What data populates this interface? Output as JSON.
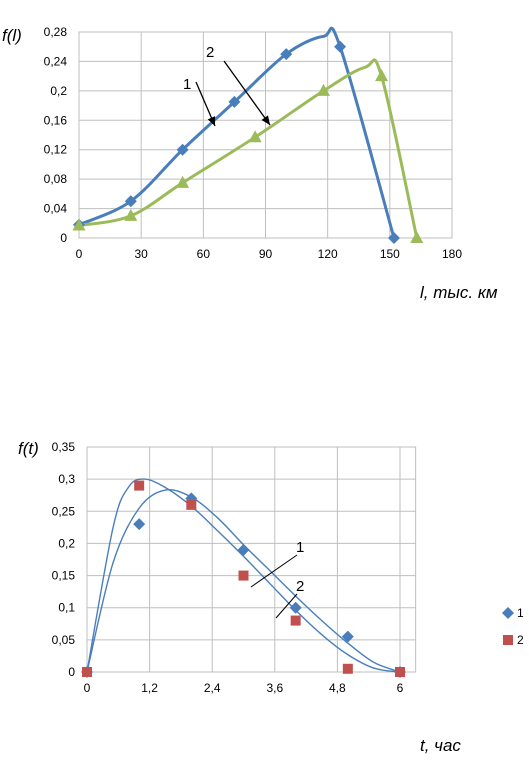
{
  "chart_data": [
    {
      "type": "line",
      "ylabel": "f(l)",
      "xlabel": "l, тыс. км",
      "xlim": [
        0,
        180
      ],
      "ylim": [
        0,
        0.28
      ],
      "x_ticks": [
        "0",
        "30",
        "60",
        "90",
        "120",
        "150",
        "180"
      ],
      "y_ticks": [
        "0",
        "0,04",
        "0,08",
        "0,12",
        "0,16",
        "0,2",
        "0,24",
        "0,28"
      ],
      "grid": true,
      "series": [
        {
          "name": "1",
          "color": "#4a7ebb",
          "marker": "diamond",
          "points": [
            [
              0,
              0.018
            ],
            [
              25,
              0.05
            ],
            [
              50,
              0.12
            ],
            [
              75,
              0.185
            ],
            [
              100,
              0.25
            ],
            [
              126,
              0.26
            ],
            [
              152,
              0.0
            ]
          ]
        },
        {
          "name": "2",
          "color": "#9bbb59",
          "marker": "triangle",
          "points": [
            [
              0,
              0.017
            ],
            [
              25,
              0.03
            ],
            [
              50,
              0.075
            ],
            [
              85,
              0.137
            ],
            [
              118,
              0.2
            ],
            [
              146,
              0.22
            ],
            [
              163,
              0.0
            ]
          ]
        }
      ],
      "annotations": [
        {
          "text": "1",
          "series": 0
        },
        {
          "text": "2",
          "series": 1
        }
      ]
    },
    {
      "type": "scatter",
      "ylabel": "f(t)",
      "xlabel": "t, час",
      "xlim": [
        0,
        6.3
      ],
      "ylim": [
        0,
        0.35
      ],
      "x_ticks": [
        "0",
        "1,2",
        "2,4",
        "3,6",
        "4,8",
        "6"
      ],
      "y_ticks": [
        "0",
        "0,05",
        "0,1",
        "0,15",
        "0,2",
        "0,25",
        "0,3",
        "0,35"
      ],
      "grid": true,
      "legend_position": "right",
      "series": [
        {
          "name": "1",
          "color": "#4a7ebb",
          "marker": "diamond",
          "points": [
            [
              0,
              0
            ],
            [
              1,
              0.23
            ],
            [
              2,
              0.27
            ],
            [
              3,
              0.19
            ],
            [
              4,
              0.1
            ],
            [
              5,
              0.055
            ],
            [
              6,
              0
            ]
          ]
        },
        {
          "name": "2",
          "color": "#c0504d",
          "marker": "square",
          "points": [
            [
              0,
              0
            ],
            [
              1,
              0.29
            ],
            [
              2,
              0.26
            ],
            [
              3,
              0.15
            ],
            [
              4,
              0.08
            ],
            [
              5,
              0.005
            ],
            [
              6,
              0
            ]
          ]
        }
      ],
      "curves": [
        {
          "label": "1",
          "color": "#4a7ebb",
          "points": [
            [
              0,
              0
            ],
            [
              0.5,
              0.17
            ],
            [
              1,
              0.255
            ],
            [
              1.5,
              0.283
            ],
            [
              2,
              0.272
            ],
            [
              2.5,
              0.24
            ],
            [
              3,
              0.198
            ],
            [
              3.5,
              0.158
            ],
            [
              4,
              0.118
            ],
            [
              4.5,
              0.08
            ],
            [
              5,
              0.045
            ],
            [
              5.5,
              0.015
            ],
            [
              6,
              0
            ]
          ]
        },
        {
          "label": "2",
          "color": "#4a7ebb",
          "points": [
            [
              0,
              0
            ],
            [
              0.5,
              0.225
            ],
            [
              0.8,
              0.288
            ],
            [
              1.1,
              0.3
            ],
            [
              1.5,
              0.287
            ],
            [
              2,
              0.258
            ],
            [
              2.5,
              0.22
            ],
            [
              3,
              0.18
            ],
            [
              3.5,
              0.138
            ],
            [
              4,
              0.096
            ],
            [
              4.5,
              0.058
            ],
            [
              5,
              0.027
            ],
            [
              5.5,
              0.006
            ],
            [
              6,
              0
            ]
          ]
        }
      ]
    }
  ]
}
